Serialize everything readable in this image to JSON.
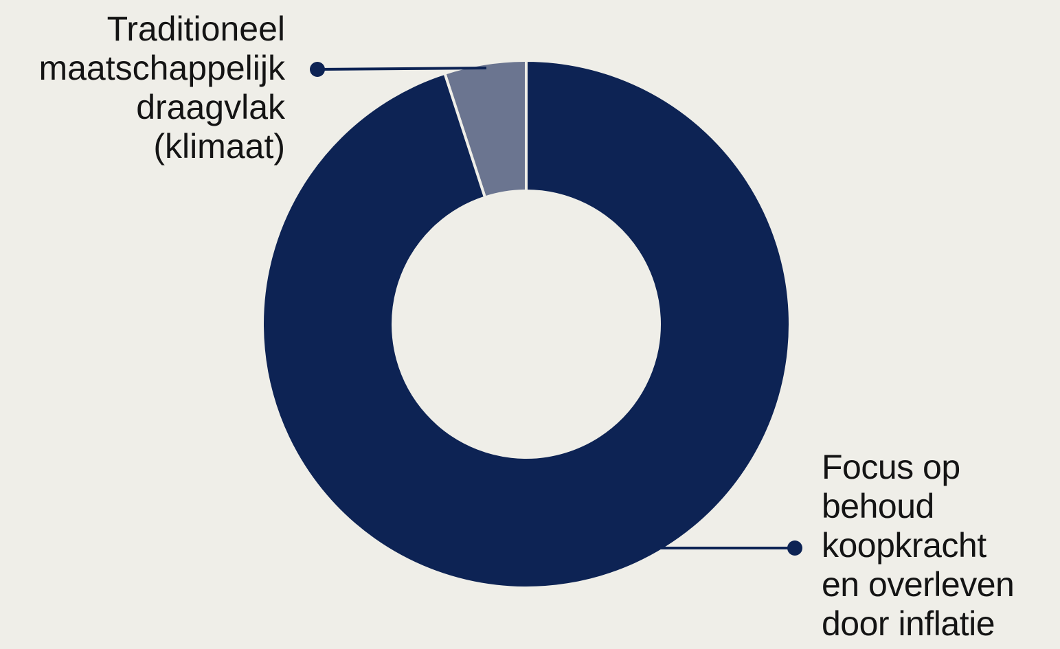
{
  "chart_data": {
    "type": "pie",
    "donut": true,
    "title": "",
    "slices": [
      {
        "label": "Traditioneel\nmaatschappelijk\ndraagvlak\n(klimaat)",
        "value": 5,
        "color": "#6b7590"
      },
      {
        "label": "Focus op\nbehoud\nkoopkracht\nen overleven\ndoor inflatie",
        "value": 95,
        "color": "#0d2354"
      }
    ],
    "legend": "none",
    "label_style": "callout"
  },
  "colors": {
    "background": "#efeee8",
    "leader_line": "#0d2354",
    "label_text": "#141414"
  }
}
